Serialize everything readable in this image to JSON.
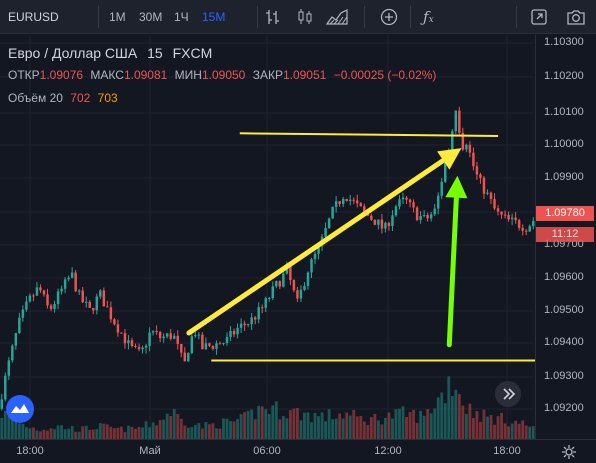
{
  "toolbar": {
    "symbol": "EURUSD",
    "intervals": [
      {
        "label": "1М",
        "selected": false
      },
      {
        "label": "30М",
        "selected": false
      },
      {
        "label": "1Ч",
        "selected": false
      },
      {
        "label": "15М",
        "selected": true
      }
    ],
    "icons": [
      "bar-style-icon",
      "candles-icon",
      "area-icon",
      "compare-add-icon",
      "indicators-icon",
      "fullscreen-icon",
      "snapshot-camera-icon"
    ]
  },
  "legend": {
    "title": "Евро / Доллар США",
    "interval": "15",
    "source": "FXCM",
    "open_label": "ОТКР",
    "open": "1.09076",
    "high_label": "МАКС",
    "high": "1.09081",
    "low_label": "МИН",
    "low": "1.09050",
    "close_label": "ЗАКР",
    "close": "1.09051",
    "change": "−0.00025 (−0.02%)",
    "volume_label": "Объём 20",
    "volume_1": "702",
    "volume_2": "703"
  },
  "price_tag": {
    "price": "1.09780",
    "countdown": "11:12"
  },
  "colors": {
    "up": "#26a69a",
    "down": "#ef5350",
    "drawing": "#ffeb3b",
    "arrow_green": "#76ff03",
    "background": "#131722"
  },
  "chart_data": {
    "type": "candlestick",
    "y_ticks": [
      "1.10300",
      "1.10200",
      "1.10100",
      "1.10000",
      "1.09900",
      "1.09800",
      "1.09700",
      "1.09600",
      "1.09500",
      "1.09400",
      "1.09300",
      "1.09200"
    ],
    "x_ticks": [
      "18:00",
      "Май",
      "06:00",
      "12:00",
      "18:00"
    ],
    "ylim": [
      1.0913,
      1.1033
    ],
    "bar_count": 152,
    "path": [
      [
        0,
        1.0922
      ],
      [
        5,
        1.0935
      ],
      [
        10,
        1.0947
      ],
      [
        15,
        1.0954
      ],
      [
        20,
        1.0958
      ],
      [
        25,
        1.0951
      ],
      [
        30,
        1.0956
      ],
      [
        36,
        1.0962
      ],
      [
        40,
        1.0955
      ],
      [
        45,
        1.0951
      ],
      [
        50,
        1.0956
      ],
      [
        55,
        1.095
      ],
      [
        60,
        1.0945
      ],
      [
        65,
        1.094
      ],
      [
        70,
        1.0938
      ],
      [
        75,
        1.0945
      ],
      [
        80,
        1.0943
      ],
      [
        86,
        1.0944
      ],
      [
        90,
        1.0937
      ],
      [
        92,
        1.0935
      ],
      [
        94,
        1.0942
      ],
      [
        97,
        1.0945
      ],
      [
        100,
        1.094
      ],
      [
        106,
        1.0941
      ],
      [
        112,
        1.0942
      ],
      [
        118,
        1.0946
      ],
      [
        124,
        1.0948
      ],
      [
        130,
        1.0952
      ],
      [
        136,
        1.0958
      ],
      [
        142,
        1.0963
      ],
      [
        147,
        1.0953
      ],
      [
        152,
        1.0963
      ],
      [
        158,
        1.097
      ],
      [
        164,
        1.098
      ],
      [
        170,
        1.0986
      ],
      [
        175,
        1.0983
      ],
      [
        180,
        1.098
      ],
      [
        185,
        1.0978
      ],
      [
        190,
        1.0975
      ],
      [
        195,
        1.0982
      ],
      [
        200,
        1.0984
      ],
      [
        205,
        1.098
      ],
      [
        210,
        1.0978
      ],
      [
        215,
        1.0981
      ],
      [
        219,
        1.0993
      ],
      [
        222,
        1.1
      ],
      [
        225,
        1.1012
      ],
      [
        228,
        1.1
      ],
      [
        230,
        1.1002
      ],
      [
        233,
        1.0995
      ],
      [
        236,
        1.099
      ],
      [
        240,
        1.0986
      ],
      [
        245,
        1.098
      ],
      [
        250,
        1.0978
      ],
      [
        255,
        1.0977
      ],
      [
        260,
        1.0976
      ],
      [
        263,
        1.0978
      ]
    ],
    "volume_path": [
      [
        0,
        0.45
      ],
      [
        10,
        0.25
      ],
      [
        20,
        0.15
      ],
      [
        30,
        0.2
      ],
      [
        40,
        0.15
      ],
      [
        50,
        0.2
      ],
      [
        60,
        0.15
      ],
      [
        70,
        0.18
      ],
      [
        80,
        0.3
      ],
      [
        85,
        0.45
      ],
      [
        90,
        0.3
      ],
      [
        100,
        0.2
      ],
      [
        110,
        0.25
      ],
      [
        120,
        0.3
      ],
      [
        130,
        0.5
      ],
      [
        140,
        0.45
      ],
      [
        150,
        0.4
      ],
      [
        160,
        0.35
      ],
      [
        170,
        0.4
      ],
      [
        180,
        0.3
      ],
      [
        190,
        0.35
      ],
      [
        200,
        0.4
      ],
      [
        210,
        0.35
      ],
      [
        215,
        0.6
      ],
      [
        219,
        0.7
      ],
      [
        222,
        0.95
      ],
      [
        225,
        0.85
      ],
      [
        230,
        0.5
      ],
      [
        240,
        0.35
      ],
      [
        250,
        0.3
      ],
      [
        263,
        0.2
      ]
    ],
    "drawings": [
      {
        "type": "line",
        "color": "#ffeb3b",
        "from": [
          117,
          1.10038
        ],
        "to": [
          244,
          1.1003
        ]
      },
      {
        "type": "line",
        "color": "#ffeb3b",
        "from": [
          103,
          1.09363
        ],
        "to": [
          265,
          1.09363
        ]
      },
      {
        "type": "arrow",
        "color": "#ffeb3b",
        "from": [
          92,
          1.09445
        ],
        "to": [
          226,
          1.09994
        ]
      },
      {
        "type": "arrow",
        "color": "#76ff03",
        "from": [
          220,
          1.0941
        ],
        "to": [
          224,
          1.09912
        ]
      }
    ]
  }
}
